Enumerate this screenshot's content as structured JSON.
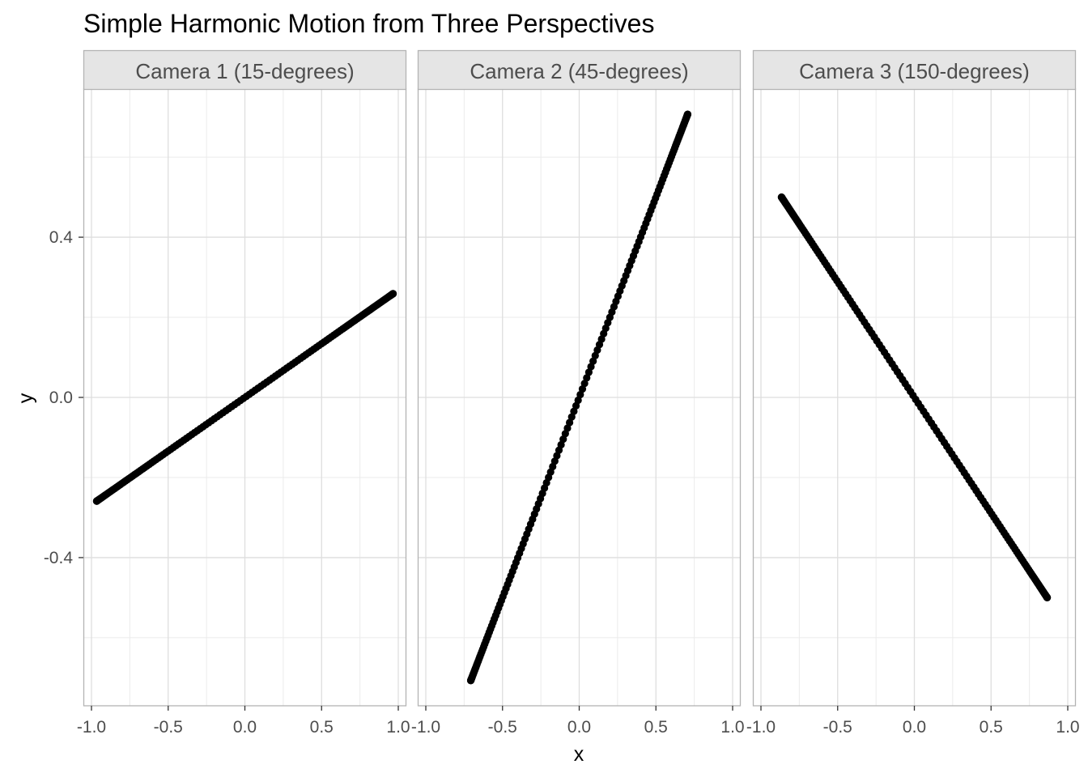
{
  "chart_data": {
    "type": "scatter",
    "title": "Simple Harmonic Motion from Three Perspectives",
    "xlabel": "x",
    "ylabel": "y",
    "xlim": [
      -1.0,
      1.0
    ],
    "ylim": [
      -0.77,
      0.77
    ],
    "x_ticks": [
      "-1.0",
      "-0.5",
      "0.0",
      "0.5",
      "1.0"
    ],
    "y_ticks": [
      "0.4",
      "0.0",
      "-0.4"
    ],
    "y_tick_values": [
      0.4,
      0.0,
      -0.4
    ],
    "x_tick_values": [
      -1.0,
      -0.5,
      0.0,
      0.5,
      1.0
    ],
    "grid": true,
    "point_color": "#000000",
    "strip_fill": "#e5e5e5",
    "grid_color": "#dedede",
    "border_color": "#b3b3b3",
    "panels": [
      {
        "label": "Camera 1 (15-degrees)",
        "angle_deg": 15,
        "x_range": [
          -0.966,
          0.966
        ],
        "y_range": [
          -0.259,
          0.259
        ]
      },
      {
        "label": "Camera 2 (45-degrees)",
        "angle_deg": 45,
        "x_range": [
          -0.707,
          0.707
        ],
        "y_range": [
          -0.707,
          0.707
        ]
      },
      {
        "label": "Camera 3 (150-degrees)",
        "angle_deg": 150,
        "x_range": [
          -0.866,
          0.866
        ],
        "y_range": [
          0.5,
          -0.5
        ]
      }
    ]
  }
}
